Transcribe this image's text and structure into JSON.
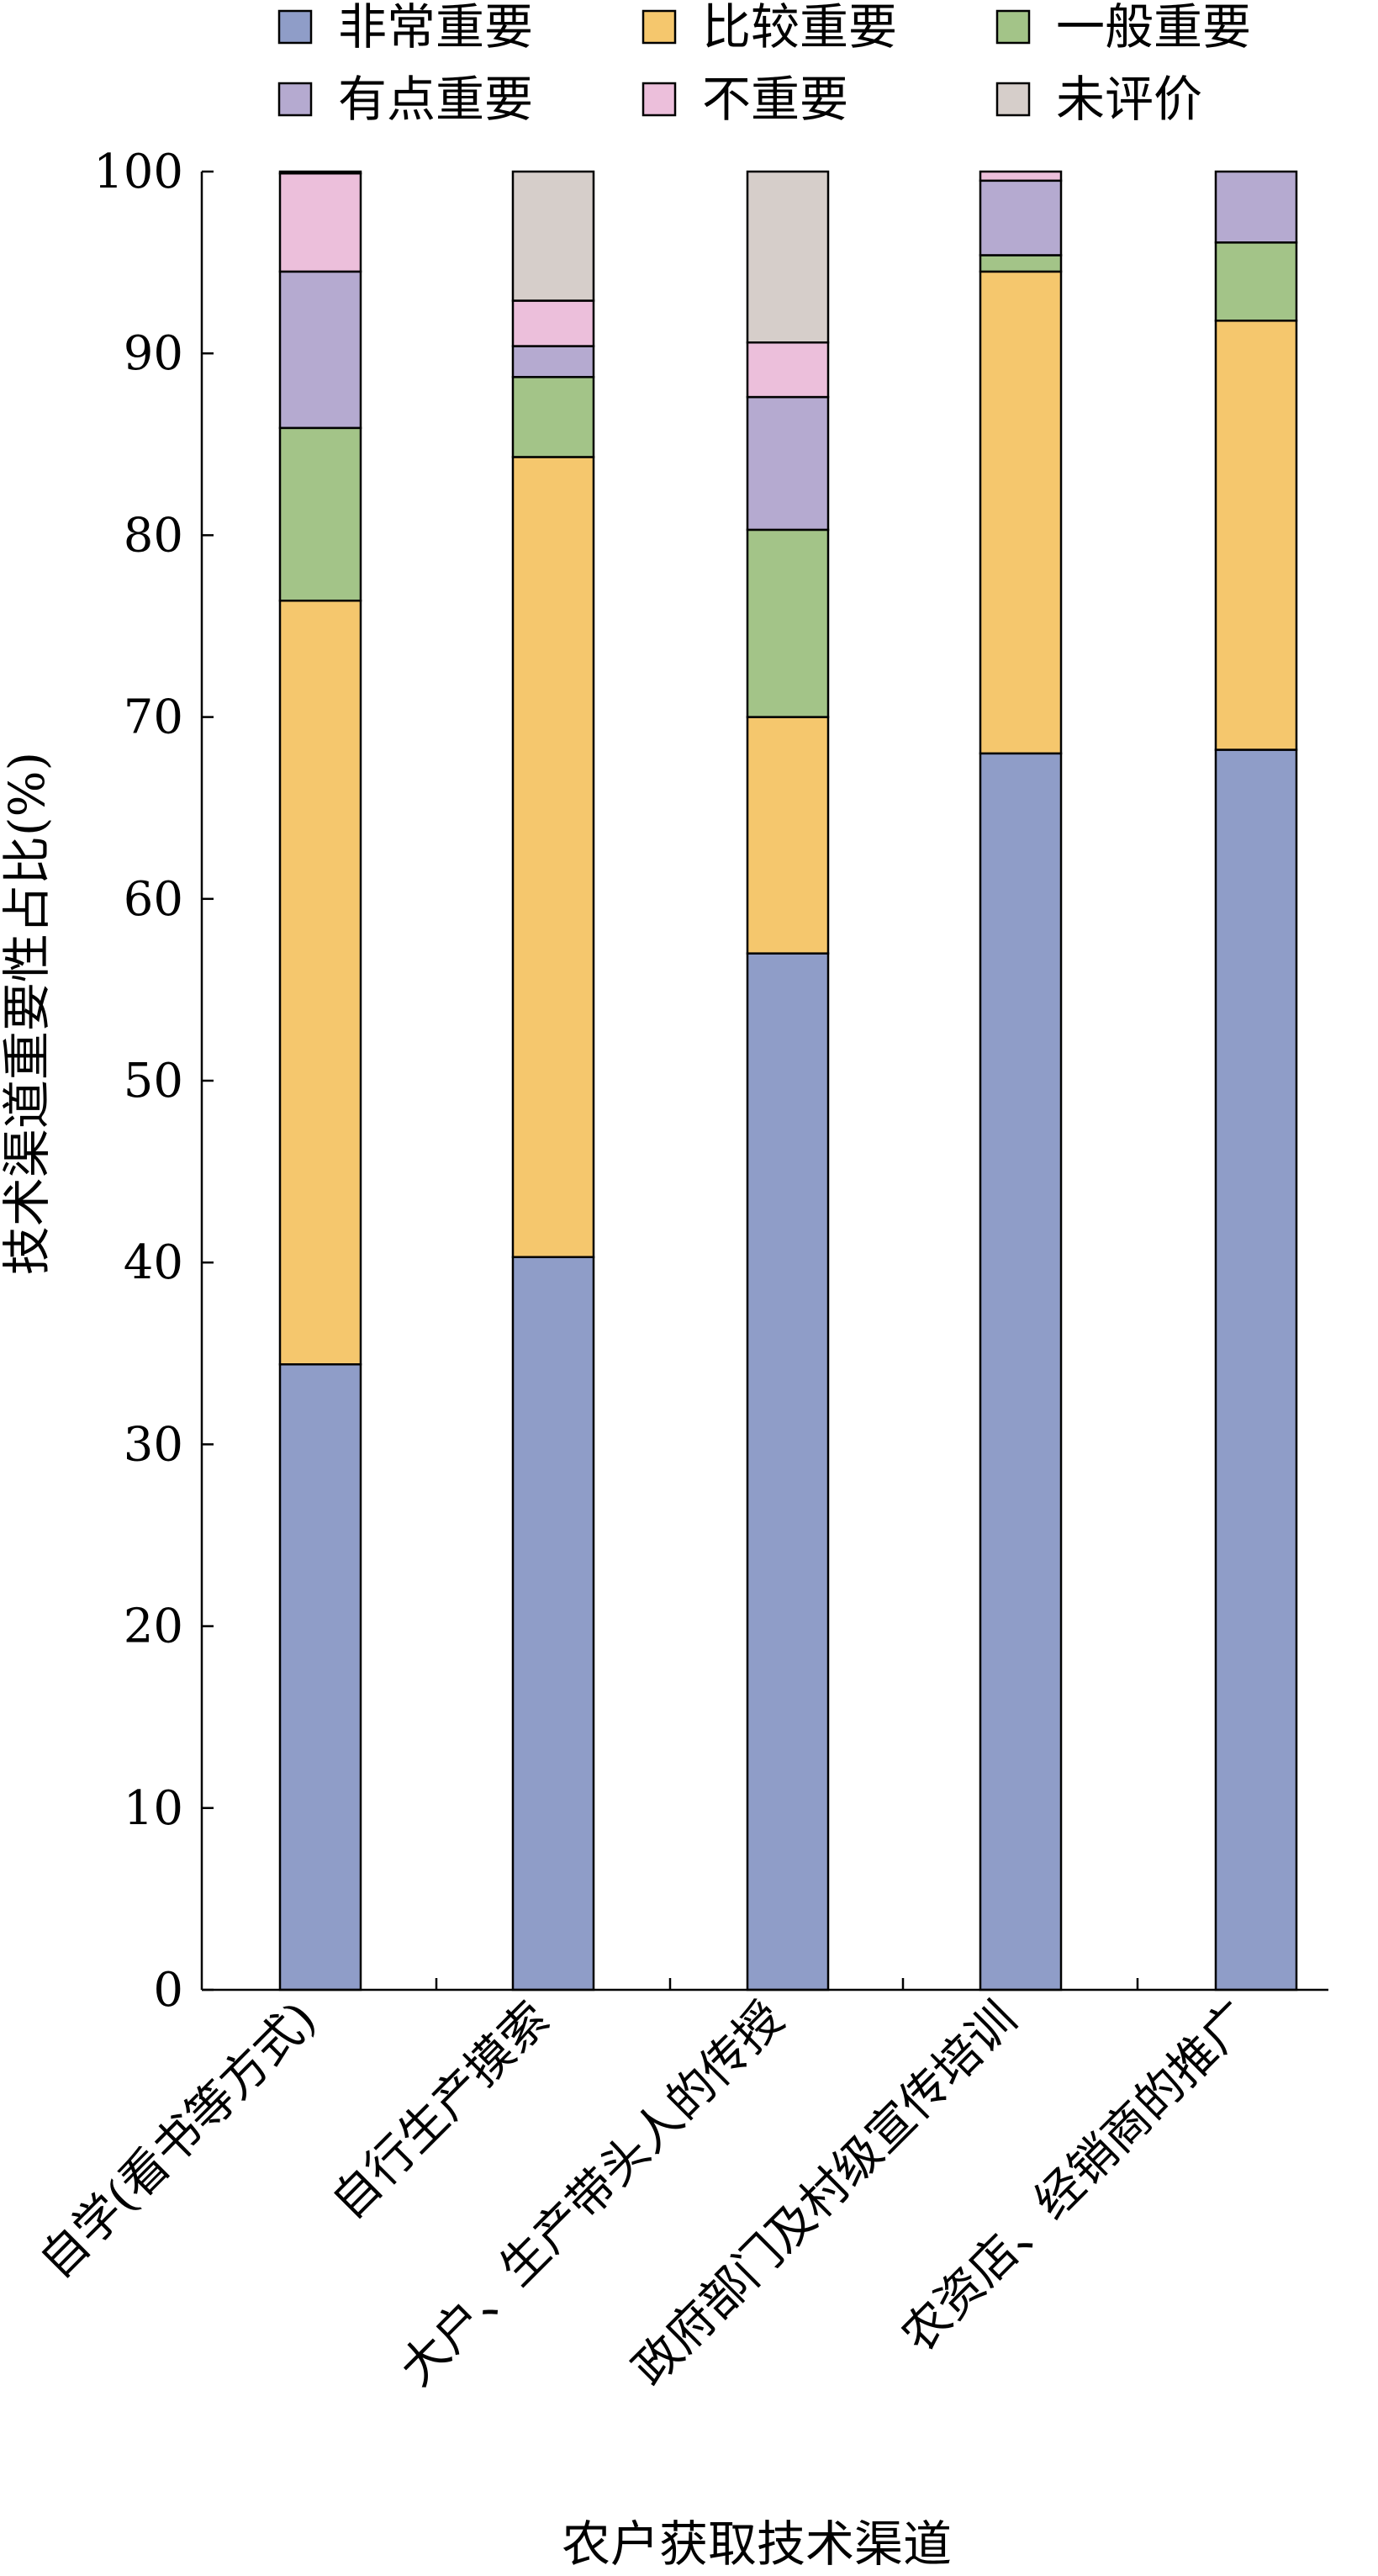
{
  "chart_data": {
    "type": "bar",
    "stacked": true,
    "title": "",
    "xlabel": "农户获取技术渠道",
    "ylabel": "技术渠道重要性占比(%)",
    "ylim": [
      0,
      100
    ],
    "yticks": [
      "0",
      "10",
      "20",
      "30",
      "40",
      "50",
      "60",
      "70",
      "80",
      "90",
      "100"
    ],
    "grid": false,
    "legend_position": "top",
    "categories": [
      "自学(看书等方式)",
      "自行生产摸索",
      "大户、生产带头人的传授",
      "政府部门及村级宣传培训",
      "农资店、经销商的推广"
    ],
    "series": [
      {
        "name": "非常重要",
        "color": "#8f9dc8",
        "values": [
          34.4,
          40.3,
          57.0,
          68.0,
          68.2
        ]
      },
      {
        "name": "比较重要",
        "color": "#f5c76d",
        "values": [
          42.0,
          44.0,
          13.0,
          26.5,
          23.6
        ]
      },
      {
        "name": "一般重要",
        "color": "#a3c488",
        "values": [
          9.5,
          4.4,
          10.3,
          0.9,
          4.3
        ]
      },
      {
        "name": "有点重要",
        "color": "#b5aad0",
        "values": [
          8.6,
          1.7,
          7.3,
          4.1,
          3.9
        ]
      },
      {
        "name": "不重要",
        "color": "#ecbfdb",
        "values": [
          5.4,
          2.5,
          3.0,
          0.5,
          0.0
        ]
      },
      {
        "name": "未评价",
        "color": "#d6ceca",
        "values": [
          0.1,
          7.1,
          9.4,
          0.0,
          0.0
        ]
      }
    ]
  }
}
